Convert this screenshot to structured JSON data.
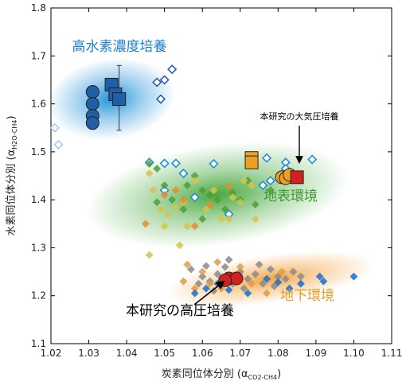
{
  "chart_data": {
    "type": "scatter",
    "xlabel": "炭素同位体分別 (α",
    "xlabel_sub": "CO2-CH4",
    "xlabel_end": ")",
    "ylabel": "水素同位体分別 (α",
    "ylabel_sub": "H2O-CH4",
    "ylabel_end": ")",
    "xlim": [
      1.02,
      1.11
    ],
    "ylim": [
      1.1,
      1.8
    ],
    "xticks": [
      "1.02",
      "1.03",
      "1.04",
      "1.05",
      "1.06",
      "1.07",
      "1.08",
      "1.09",
      "1.10",
      "1.11"
    ],
    "yticks": [
      "1.1",
      "1.2",
      "1.3",
      "1.4",
      "1.5",
      "1.6",
      "1.7",
      "1.8"
    ],
    "regions": [
      {
        "name": "高水素濃度培養",
        "color": "#1a8fd8",
        "cx": 1.036,
        "cy": 1.61,
        "rx": 0.017,
        "ry": 0.085
      },
      {
        "name": "地表環境",
        "color": "#3fa535",
        "cx": 1.064,
        "cy": 1.41,
        "rx": 0.035,
        "ry": 0.105
      },
      {
        "name": "地下環境",
        "color": "#f1a23a",
        "cx": 1.078,
        "cy": 1.235,
        "rx": 0.028,
        "ry": 0.05
      }
    ],
    "labels": {
      "high_h2": "高水素濃度培養",
      "surface": "地表環境",
      "subsurface": "地下環境",
      "atm_culture": "本研究の大気圧培養",
      "hp_culture": "本研究の高圧培養"
    },
    "series": [
      {
        "marker": "circle",
        "color": "#1f5fa8",
        "points": [
          [
            1.031,
            1.625
          ],
          [
            1.031,
            1.6
          ],
          [
            1.031,
            1.575
          ],
          [
            1.031,
            1.56
          ]
        ]
      },
      {
        "marker": "square",
        "color": "#1f5fa8",
        "points": [
          [
            1.036,
            1.64
          ],
          [
            1.037,
            1.62
          ],
          [
            1.038,
            1.61
          ]
        ]
      },
      {
        "marker": "diamond-open",
        "color": "#2a5fb0",
        "points": [
          [
            1.052,
            1.672
          ],
          [
            1.05,
            1.65
          ],
          [
            1.048,
            1.645
          ],
          [
            1.049,
            1.61
          ]
        ]
      },
      {
        "marker": "diamond-open",
        "color": "#a9c9ec",
        "points": [
          [
            1.021,
            1.55
          ],
          [
            1.022,
            1.515
          ]
        ]
      },
      {
        "marker": "diamond-open",
        "color": "#1e90d6",
        "points": [
          [
            1.046,
            1.478
          ],
          [
            1.05,
            1.476
          ],
          [
            1.053,
            1.476
          ],
          [
            1.063,
            1.475
          ],
          [
            1.077,
            1.487
          ],
          [
            1.082,
            1.478
          ],
          [
            1.089,
            1.484
          ],
          [
            1.078,
            1.44
          ],
          [
            1.076,
            1.43
          ],
          [
            1.05,
            1.42
          ],
          [
            1.055,
            1.455
          ],
          [
            1.067,
            1.37
          ],
          [
            1.058,
            1.405
          ],
          [
            1.082,
            1.465
          ]
        ]
      },
      {
        "marker": "diamond",
        "color": "#4f9d3d",
        "points": [
          [
            1.046,
            1.475
          ],
          [
            1.048,
            1.465
          ],
          [
            1.05,
            1.43
          ],
          [
            1.052,
            1.4
          ],
          [
            1.055,
            1.38
          ],
          [
            1.058,
            1.45
          ],
          [
            1.06,
            1.42
          ],
          [
            1.062,
            1.41
          ],
          [
            1.064,
            1.4
          ],
          [
            1.068,
            1.415
          ],
          [
            1.07,
            1.4
          ],
          [
            1.074,
            1.39
          ],
          [
            1.078,
            1.42
          ],
          [
            1.06,
            1.36
          ],
          [
            1.056,
            1.43
          ],
          [
            1.066,
            1.38
          ],
          [
            1.072,
            1.44
          ],
          [
            1.048,
            1.395
          ]
        ]
      },
      {
        "marker": "diamond",
        "color": "#d8c24a",
        "points": [
          [
            1.047,
            1.42
          ],
          [
            1.049,
            1.38
          ],
          [
            1.051,
            1.37
          ],
          [
            1.053,
            1.385
          ],
          [
            1.056,
            1.345
          ],
          [
            1.058,
            1.44
          ],
          [
            1.061,
            1.38
          ],
          [
            1.065,
            1.36
          ],
          [
            1.068,
            1.405
          ],
          [
            1.07,
            1.395
          ],
          [
            1.073,
            1.43
          ],
          [
            1.074,
            1.36
          ],
          [
            1.046,
            1.455
          ],
          [
            1.05,
            1.345
          ],
          [
            1.055,
            1.395
          ],
          [
            1.063,
            1.42
          ],
          [
            1.046,
            1.285
          ],
          [
            1.054,
            1.305
          ],
          [
            1.071,
            1.44
          ],
          [
            1.067,
            1.36
          ]
        ]
      },
      {
        "marker": "diamond",
        "color": "#e98a2e",
        "points": [
          [
            1.053,
            1.42
          ],
          [
            1.055,
            1.4
          ],
          [
            1.058,
            1.345
          ],
          [
            1.062,
            1.39
          ],
          [
            1.045,
            1.35
          ],
          [
            1.067,
            1.428
          ],
          [
            1.05,
            1.41
          ]
        ]
      },
      {
        "marker": "diamond",
        "color": "#8a8a8a",
        "points": [
          [
            1.057,
            1.255
          ],
          [
            1.06,
            1.24
          ],
          [
            1.062,
            1.23
          ],
          [
            1.064,
            1.245
          ],
          [
            1.066,
            1.26
          ],
          [
            1.068,
            1.225
          ],
          [
            1.07,
            1.25
          ],
          [
            1.072,
            1.235
          ],
          [
            1.074,
            1.245
          ],
          [
            1.076,
            1.225
          ],
          [
            1.078,
            1.255
          ],
          [
            1.08,
            1.24
          ],
          [
            1.082,
            1.235
          ],
          [
            1.084,
            1.25
          ],
          [
            1.086,
            1.24
          ],
          [
            1.059,
            1.225
          ],
          [
            1.063,
            1.21
          ],
          [
            1.071,
            1.215
          ],
          [
            1.075,
            1.265
          ],
          [
            1.079,
            1.22
          ],
          [
            1.067,
            1.275
          ],
          [
            1.061,
            1.262
          ]
        ]
      },
      {
        "marker": "diamond",
        "color": "#e09a45",
        "points": [
          [
            1.055,
            1.23
          ],
          [
            1.058,
            1.215
          ],
          [
            1.06,
            1.25
          ],
          [
            1.062,
            1.225
          ],
          [
            1.065,
            1.215
          ],
          [
            1.069,
            1.24
          ],
          [
            1.073,
            1.225
          ],
          [
            1.077,
            1.205
          ],
          [
            1.081,
            1.25
          ],
          [
            1.056,
            1.265
          ],
          [
            1.064,
            1.27
          ],
          [
            1.07,
            1.26
          ]
        ]
      },
      {
        "marker": "diamond",
        "color": "#1a6fc9",
        "points": [
          [
            1.058,
            1.205
          ],
          [
            1.061,
            1.215
          ],
          [
            1.064,
            1.225
          ],
          [
            1.072,
            1.205
          ],
          [
            1.077,
            1.235
          ],
          [
            1.083,
            1.215
          ],
          [
            1.086,
            1.225
          ],
          [
            1.091,
            1.24
          ],
          [
            1.092,
            1.23
          ],
          [
            1.1,
            1.24
          ],
          [
            1.067,
            1.212
          ],
          [
            1.08,
            1.228
          ]
        ]
      },
      {
        "marker": "square",
        "color": "#f0a020",
        "points": [
          [
            1.073,
            1.487
          ],
          [
            1.073,
            1.478
          ]
        ]
      },
      {
        "marker": "circle",
        "color": "#f0a020",
        "points": [
          [
            1.081,
            1.447
          ],
          [
            1.082,
            1.445
          ],
          [
            1.083,
            1.452
          ]
        ]
      },
      {
        "marker": "square",
        "color": "#d42020",
        "points": [
          [
            1.085,
            1.447
          ]
        ]
      },
      {
        "marker": "circle",
        "color": "#d42020",
        "points": [
          [
            1.067,
            1.236
          ],
          [
            1.069,
            1.236
          ],
          [
            1.066,
            1.232
          ]
        ]
      }
    ],
    "error_bars": [
      {
        "x": 1.038,
        "y": 1.61,
        "ylow": 1.545,
        "yhigh": 1.68
      },
      {
        "x": 1.031,
        "y": 1.56,
        "ylow": 1.55,
        "yhigh": 1.57
      }
    ]
  }
}
